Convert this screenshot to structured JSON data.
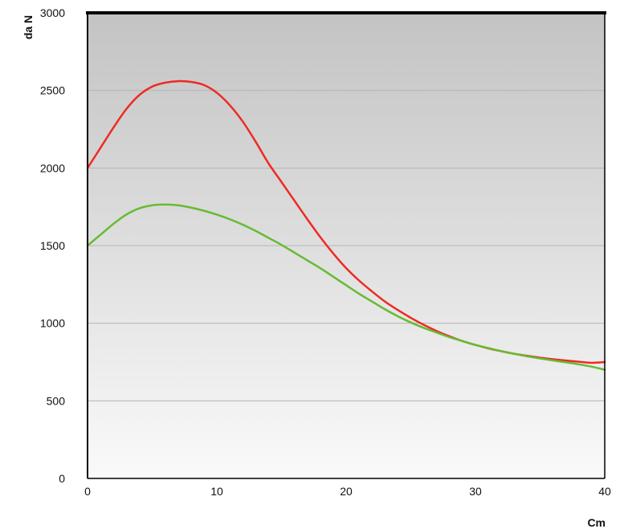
{
  "chart_data": {
    "type": "line",
    "title": "",
    "xlabel": "Cm",
    "ylabel": "da N",
    "xlim": [
      0,
      40
    ],
    "ylim": [
      0,
      3000
    ],
    "xticks": [
      0,
      10,
      20,
      30,
      40
    ],
    "yticks": [
      0,
      500,
      1000,
      1500,
      2000,
      2500,
      3000
    ],
    "grid": "horizontal",
    "legend": "none",
    "background": "gradient gray to white",
    "series": [
      {
        "color": "#ee2a24",
        "x": [
          0,
          1,
          2,
          3,
          4,
          5,
          6,
          7,
          8,
          9,
          10,
          11,
          12,
          13,
          14,
          15,
          16,
          17,
          18,
          19,
          20,
          21,
          22,
          23,
          24,
          25,
          26,
          27,
          28,
          29,
          30,
          31,
          32,
          33,
          34,
          35,
          36,
          37,
          38,
          39,
          40
        ],
        "values": [
          2000,
          2130,
          2260,
          2380,
          2470,
          2525,
          2550,
          2560,
          2555,
          2535,
          2485,
          2405,
          2300,
          2170,
          2030,
          1910,
          1790,
          1670,
          1555,
          1450,
          1355,
          1275,
          1205,
          1140,
          1085,
          1035,
          990,
          950,
          915,
          885,
          860,
          838,
          820,
          803,
          790,
          778,
          768,
          760,
          752,
          745,
          750
        ]
      },
      {
        "color": "#66bb33",
        "x": [
          0,
          1,
          2,
          3,
          4,
          5,
          6,
          7,
          8,
          9,
          10,
          11,
          12,
          13,
          14,
          15,
          16,
          17,
          18,
          19,
          20,
          21,
          22,
          23,
          24,
          25,
          26,
          27,
          28,
          29,
          30,
          31,
          32,
          33,
          34,
          35,
          36,
          37,
          38,
          39,
          40
        ],
        "values": [
          1500,
          1570,
          1640,
          1700,
          1740,
          1760,
          1765,
          1760,
          1745,
          1725,
          1700,
          1670,
          1635,
          1595,
          1550,
          1505,
          1455,
          1405,
          1355,
          1300,
          1245,
          1190,
          1140,
          1090,
          1045,
          1005,
          970,
          940,
          910,
          885,
          860,
          840,
          820,
          803,
          787,
          773,
          760,
          748,
          735,
          720,
          700
        ]
      }
    ]
  }
}
